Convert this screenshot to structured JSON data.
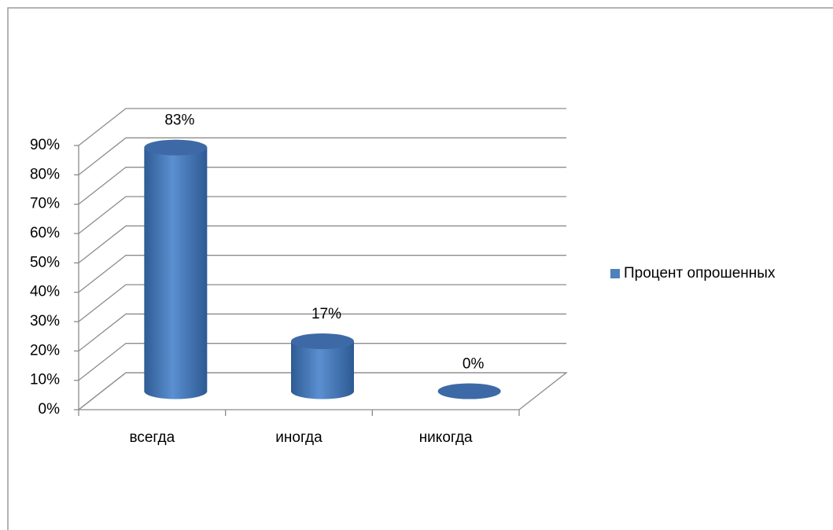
{
  "chart_data": {
    "type": "bar3d",
    "categories": [
      "всегда",
      "иногда",
      "никогда"
    ],
    "series": [
      {
        "name": "Процент опрошенных",
        "color": "#4f81bd",
        "values": [
          83,
          17,
          0
        ],
        "value_labels": [
          "83%",
          "17%",
          "0%"
        ]
      }
    ],
    "ylim": [
      0,
      90
    ],
    "yticks": [
      {
        "value": 0,
        "label": "0%"
      },
      {
        "value": 10,
        "label": "10%"
      },
      {
        "value": 20,
        "label": "20%"
      },
      {
        "value": 30,
        "label": "30%"
      },
      {
        "value": 40,
        "label": "40%"
      },
      {
        "value": 50,
        "label": "50%"
      },
      {
        "value": 60,
        "label": "60%"
      },
      {
        "value": 70,
        "label": "70%"
      },
      {
        "value": 80,
        "label": "80%"
      },
      {
        "value": 90,
        "label": "90%"
      }
    ],
    "grid": true,
    "legend": "right"
  }
}
